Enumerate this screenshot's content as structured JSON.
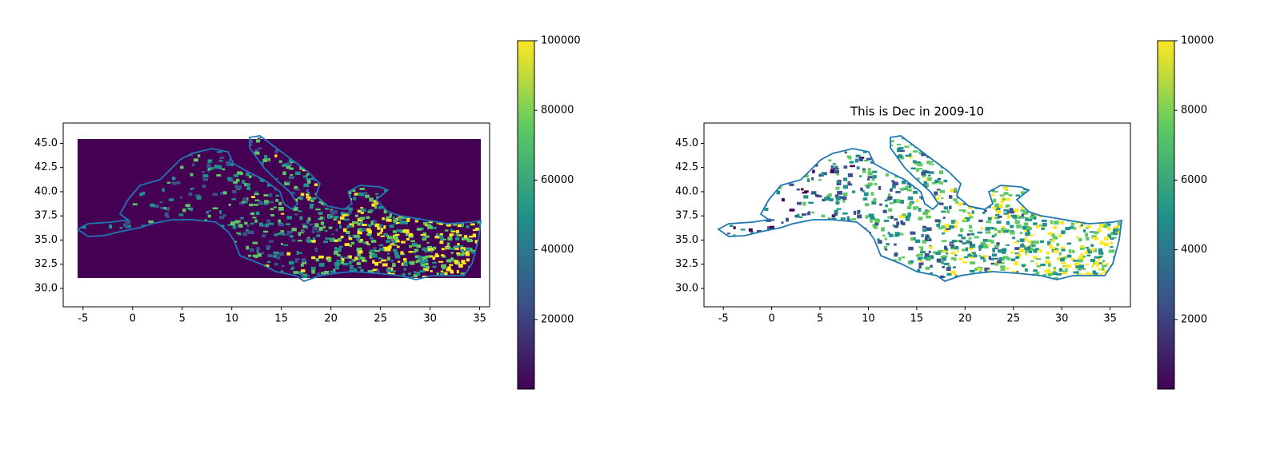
{
  "chart_data": [
    {
      "type": "map",
      "xlim": [
        -7.0,
        36.0
      ],
      "ylim": [
        28.1,
        47.1
      ],
      "xticks": [
        -5,
        0,
        5,
        10,
        15,
        20,
        25,
        30,
        35
      ],
      "yticks": [
        {
          "value": 30,
          "label": "30.0"
        },
        {
          "value": 32.5,
          "label": "32.5"
        },
        {
          "value": 35,
          "label": "35.0"
        },
        {
          "value": 37.5,
          "label": "37.5"
        },
        {
          "value": 40,
          "label": "40.0"
        },
        {
          "value": 42.5,
          "label": "42.5"
        },
        {
          "value": 45,
          "label": "45.0"
        }
      ],
      "colorbar": {
        "lim": [
          0,
          100000
        ],
        "ticks": [
          20000,
          40000,
          60000,
          80000,
          100000
        ]
      },
      "background": "#440154"
    },
    {
      "type": "map",
      "title": "This is Dec in 2009-10",
      "xlim": [
        -7.0,
        37.1
      ],
      "ylim": [
        28.1,
        47.1
      ],
      "xticks": [
        -5,
        0,
        5,
        10,
        15,
        20,
        25,
        30,
        35
      ],
      "yticks": [
        {
          "value": 30,
          "label": "30.0"
        },
        {
          "value": 32.5,
          "label": "32.5"
        },
        {
          "value": 35,
          "label": "35.0"
        },
        {
          "value": 37.5,
          "label": "37.5"
        },
        {
          "value": 40,
          "label": "40.0"
        },
        {
          "value": 42.5,
          "label": "42.5"
        },
        {
          "value": 45,
          "label": "45.0"
        }
      ],
      "colorbar": {
        "lim": [
          0,
          10000
        ],
        "ticks": [
          2000,
          4000,
          6000,
          8000,
          10000
        ]
      },
      "background": "#ffffff"
    }
  ]
}
